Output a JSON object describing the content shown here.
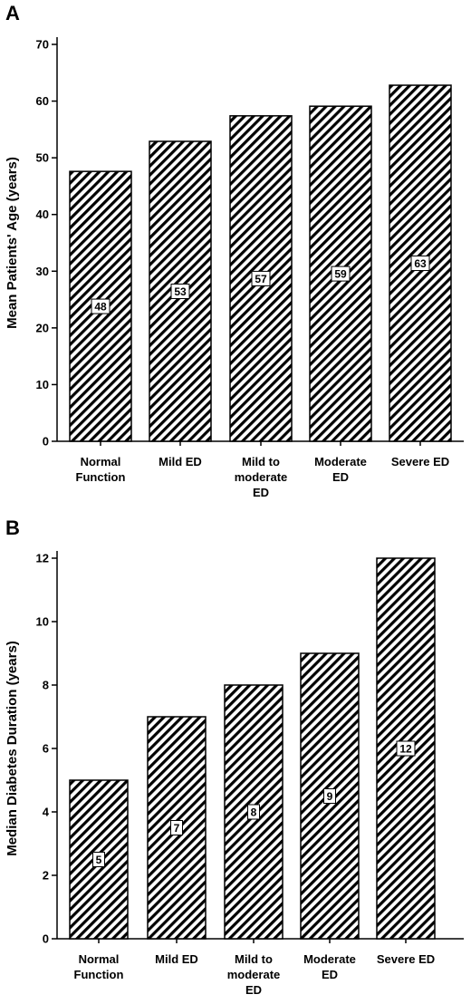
{
  "chart_data": [
    {
      "panel": "A",
      "type": "bar",
      "categories": [
        [
          "Normal",
          "Function"
        ],
        [
          "Mild ED"
        ],
        [
          "Mild to",
          "moderate",
          "ED"
        ],
        [
          "Moderate",
          "ED"
        ],
        [
          "Severe ED"
        ]
      ],
      "values": [
        47.6,
        52.9,
        57.4,
        59.1,
        62.8
      ],
      "value_labels": [
        "48",
        "53",
        "57",
        "59",
        "63"
      ],
      "ylabel": "Mean Patients' Age (years)",
      "ylim": [
        0,
        70
      ],
      "yticks": [
        0,
        10,
        20,
        30,
        40,
        50,
        60,
        70
      ],
      "fill": "diagonal-hatch",
      "color": "#000000"
    },
    {
      "panel": "B",
      "type": "bar",
      "categories": [
        [
          "Normal",
          "Function"
        ],
        [
          "Mild ED"
        ],
        [
          "Mild to",
          "moderate",
          "ED"
        ],
        [
          "Moderate",
          "ED"
        ],
        [
          "Severe ED"
        ]
      ],
      "values": [
        5,
        7,
        8,
        9,
        12
      ],
      "value_labels": [
        "5",
        "7",
        "8",
        "9",
        "12"
      ],
      "ylabel": "Median Diabetes Duration (years)",
      "ylim": [
        0,
        12
      ],
      "yticks": [
        0,
        2,
        4,
        6,
        8,
        10,
        12
      ],
      "fill": "diagonal-hatch",
      "color": "#000000"
    }
  ]
}
